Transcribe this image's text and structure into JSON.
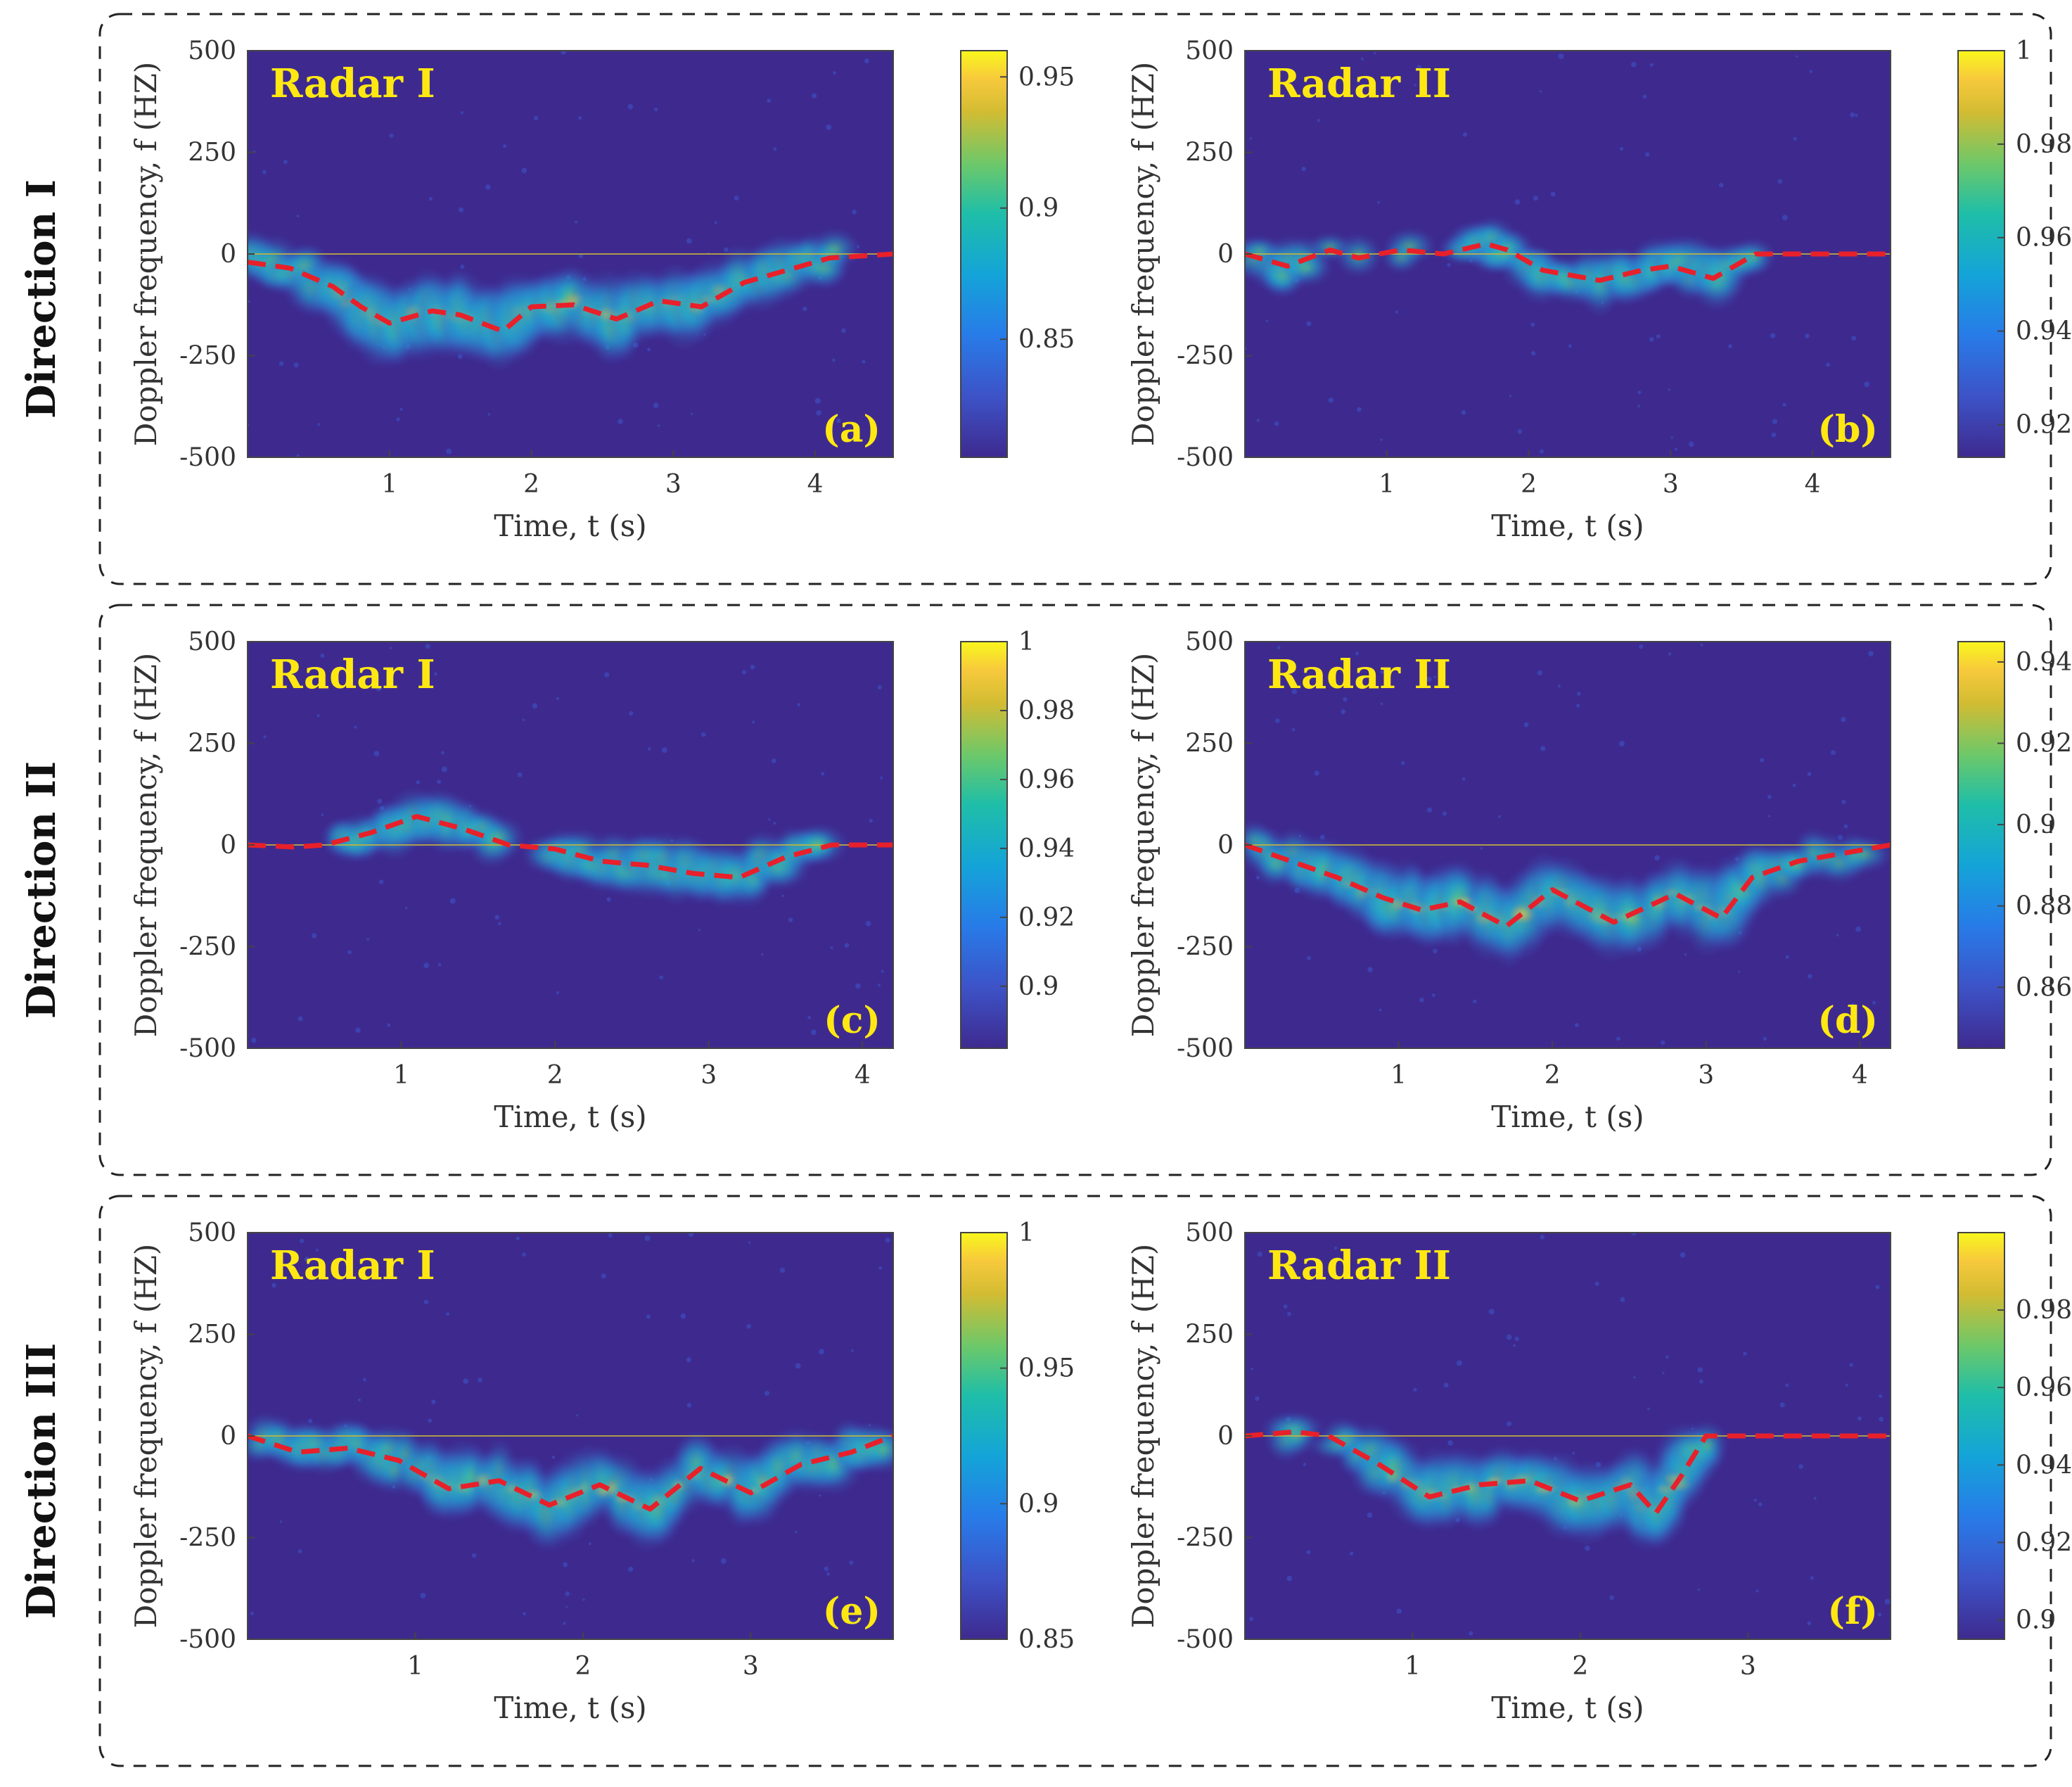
{
  "row_labels": [
    "Direction I",
    "Direction II",
    "Direction III"
  ],
  "chart_data": [
    {
      "type": "heatmap",
      "tag": "(a)",
      "row": 0,
      "col": 0,
      "title": "Radar I",
      "xlabel": "Time, t (s)",
      "ylabel": "Doppler frequency, f (HZ)",
      "xlim": [
        0,
        4.55
      ],
      "ylim": [
        -500,
        500
      ],
      "xticks": [
        1,
        2,
        3,
        4
      ],
      "yticks": [
        500,
        250,
        0,
        -250,
        -500
      ],
      "ytick_labels": [
        "500",
        "250",
        "0",
        "-250",
        "-500"
      ],
      "colorbar": {
        "min": 0.805,
        "max": 0.96,
        "ticks": [
          0.95,
          0.9,
          0.85
        ],
        "tick_labels": [
          "0.95",
          "0.9",
          "0.85"
        ]
      },
      "track": {
        "t": [
          0,
          0.3,
          0.6,
          0.8,
          1.0,
          1.3,
          1.5,
          1.8,
          2.0,
          2.3,
          2.6,
          2.9,
          3.2,
          3.5,
          3.8,
          4.1,
          4.55
        ],
        "f": [
          -20,
          -35,
          -80,
          -130,
          -170,
          -140,
          -150,
          -190,
          -130,
          -125,
          -160,
          -115,
          -130,
          -70,
          -40,
          -10,
          0
        ]
      }
    },
    {
      "type": "heatmap",
      "tag": "(b)",
      "row": 0,
      "col": 1,
      "title": "Radar II",
      "xlabel": "Time, t (s)",
      "ylabel": "Doppler frequency, f (HZ)",
      "xlim": [
        0,
        4.55
      ],
      "ylim": [
        -500,
        500
      ],
      "xticks": [
        1,
        2,
        3,
        4
      ],
      "yticks": [
        500,
        250,
        0,
        -250,
        -500
      ],
      "ytick_labels": [
        "500",
        "250",
        "0",
        "-250",
        "-500"
      ],
      "colorbar": {
        "min": 0.913,
        "max": 1.0,
        "ticks": [
          1,
          0.98,
          0.96,
          0.94,
          0.92
        ],
        "tick_labels": [
          "1",
          "0.98",
          "0.96",
          "0.94",
          "0.92"
        ]
      },
      "track": {
        "t": [
          0,
          0.3,
          0.6,
          0.8,
          1.1,
          1.4,
          1.7,
          1.85,
          2.1,
          2.5,
          2.8,
          3.0,
          3.3,
          3.6,
          4.0,
          4.55
        ],
        "f": [
          0,
          -30,
          10,
          -10,
          10,
          0,
          25,
          10,
          -40,
          -65,
          -40,
          -30,
          -60,
          0,
          0,
          0
        ]
      }
    },
    {
      "type": "heatmap",
      "tag": "(c)",
      "row": 1,
      "col": 0,
      "title": "Radar I",
      "xlabel": "Time, t (s)",
      "ylabel": "Doppler frequency, f (HZ)",
      "xlim": [
        0,
        4.2
      ],
      "ylim": [
        -500,
        500
      ],
      "xticks": [
        1,
        2,
        3,
        4
      ],
      "yticks": [
        500,
        250,
        0,
        -250,
        -500
      ],
      "ytick_labels": [
        "500",
        "250",
        "0",
        "-250",
        "-500"
      ],
      "colorbar": {
        "min": 0.882,
        "max": 1.0,
        "ticks": [
          1,
          0.98,
          0.96,
          0.94,
          0.92,
          0.9
        ],
        "tick_labels": [
          "1",
          "0.98",
          "0.96",
          "0.94",
          "0.92",
          "0.9"
        ]
      },
      "track": {
        "t": [
          0,
          0.3,
          0.5,
          0.8,
          1.1,
          1.4,
          1.7,
          2.0,
          2.3,
          2.6,
          2.9,
          3.2,
          3.5,
          3.8,
          4.2
        ],
        "f": [
          0,
          -5,
          0,
          30,
          70,
          40,
          0,
          -10,
          -40,
          -50,
          -70,
          -80,
          -30,
          0,
          0
        ]
      }
    },
    {
      "type": "heatmap",
      "tag": "(d)",
      "row": 1,
      "col": 1,
      "title": "Radar II",
      "xlabel": "Time, t (s)",
      "ylabel": "Doppler frequency, f (HZ)",
      "xlim": [
        0,
        4.2
      ],
      "ylim": [
        -500,
        500
      ],
      "xticks": [
        1,
        2,
        3,
        4
      ],
      "yticks": [
        500,
        250,
        0,
        -250,
        -500
      ],
      "ytick_labels": [
        "500",
        "250",
        "0",
        "-250",
        "-500"
      ],
      "colorbar": {
        "min": 0.845,
        "max": 0.945,
        "ticks": [
          0.94,
          0.92,
          0.9,
          0.88,
          0.86
        ],
        "tick_labels": [
          "0.94",
          "0.92",
          "0.9",
          "0.88",
          "0.86"
        ]
      },
      "track": {
        "t": [
          0,
          0.3,
          0.6,
          0.9,
          1.15,
          1.4,
          1.7,
          2.0,
          2.4,
          2.8,
          3.1,
          3.3,
          3.6,
          4.2
        ],
        "f": [
          0,
          -40,
          -80,
          -130,
          -160,
          -140,
          -200,
          -110,
          -190,
          -120,
          -180,
          -80,
          -40,
          0
        ]
      }
    },
    {
      "type": "heatmap",
      "tag": "(e)",
      "row": 2,
      "col": 0,
      "title": "Radar I",
      "xlabel": "Time, t (s)",
      "ylabel": "Doppler frequency, f (HZ)",
      "xlim": [
        0,
        3.85
      ],
      "ylim": [
        -500,
        500
      ],
      "xticks": [
        1,
        2,
        3
      ],
      "yticks": [
        500,
        250,
        0,
        -250,
        -500
      ],
      "ytick_labels": [
        "500",
        "250",
        "0",
        "-250",
        "-500"
      ],
      "colorbar": {
        "min": 0.85,
        "max": 1.0,
        "ticks": [
          1,
          0.95,
          0.9,
          0.85
        ],
        "tick_labels": [
          "1",
          "0.95",
          "0.9",
          "0.85"
        ]
      },
      "track": {
        "t": [
          0,
          0.3,
          0.6,
          0.9,
          1.2,
          1.5,
          1.8,
          2.1,
          2.4,
          2.7,
          3.0,
          3.3,
          3.6,
          3.85
        ],
        "f": [
          0,
          -40,
          -30,
          -60,
          -130,
          -110,
          -170,
          -120,
          -180,
          -80,
          -140,
          -70,
          -40,
          0
        ]
      }
    },
    {
      "type": "heatmap",
      "tag": "(f)",
      "row": 2,
      "col": 1,
      "title": "Radar II",
      "xlabel": "Time, t (s)",
      "ylabel": "Doppler frequency, f (HZ)",
      "xlim": [
        0,
        3.85
      ],
      "ylim": [
        -500,
        500
      ],
      "xticks": [
        1,
        2,
        3
      ],
      "yticks": [
        500,
        250,
        0,
        -250,
        -500
      ],
      "ytick_labels": [
        "500",
        "250",
        "0",
        "-250",
        "-500"
      ],
      "colorbar": {
        "min": 0.895,
        "max": 1.0,
        "ticks": [
          0.98,
          0.96,
          0.94,
          0.92,
          0.9
        ],
        "tick_labels": [
          "0.98",
          "0.96",
          "0.94",
          "0.92",
          "0.9"
        ]
      },
      "track": {
        "t": [
          0,
          0.3,
          0.5,
          0.8,
          1.1,
          1.4,
          1.7,
          2.0,
          2.3,
          2.45,
          2.6,
          2.75,
          3.2,
          3.85
        ],
        "f": [
          0,
          10,
          0,
          -70,
          -150,
          -120,
          -110,
          -160,
          -120,
          -190,
          -100,
          0,
          0,
          0
        ]
      }
    }
  ]
}
